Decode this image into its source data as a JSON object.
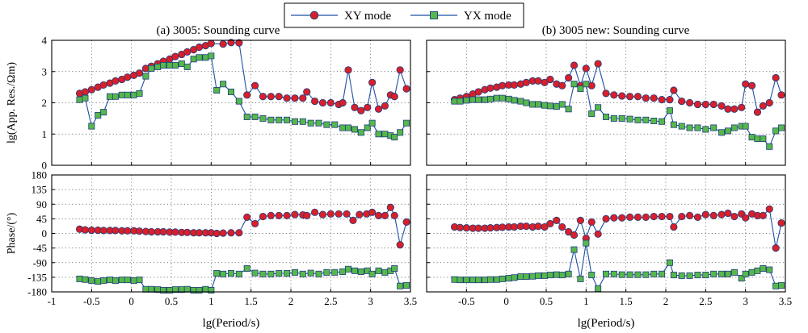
{
  "legend": {
    "placement": "top-center",
    "entries": [
      {
        "label": "XY mode",
        "marker": "circle",
        "color": "#d81f2a"
      },
      {
        "label": "YX mode",
        "marker": "square",
        "color": "#56b84b"
      }
    ]
  },
  "colors": {
    "line": "#1f4fa3",
    "xy_fill": "#d81f2a",
    "yx_fill": "#56b84b",
    "marker_edge": "#1f3c7c"
  },
  "chart_data": [
    {
      "type": "line",
      "title": "(a) 3005: Sounding curve",
      "panel": "top-left",
      "xlabel": "",
      "ylabel": "lg(App. Res./Ωm)",
      "xlim": [
        -1,
        3.5
      ],
      "ylim": [
        0,
        4
      ],
      "xticks": [],
      "yticks": [
        "0",
        "1",
        "2",
        "3",
        "4"
      ],
      "grid": true,
      "series": [
        {
          "name": "XY mode",
          "x": [
            -0.65,
            -0.58,
            -0.5,
            -0.42,
            -0.35,
            -0.27,
            -0.2,
            -0.12,
            -0.05,
            0.03,
            0.1,
            0.18,
            0.25,
            0.33,
            0.4,
            0.48,
            0.55,
            0.63,
            0.7,
            0.78,
            0.85,
            0.93,
            1.0,
            1.15,
            1.25,
            1.35,
            1.45,
            1.55,
            1.65,
            1.75,
            1.85,
            1.95,
            2.05,
            2.15,
            2.2,
            2.3,
            2.4,
            2.5,
            2.6,
            2.65,
            2.72,
            2.8,
            2.88,
            2.96,
            3.02,
            3.1,
            3.18,
            3.25,
            3.3,
            3.37,
            3.45
          ],
          "values": [
            2.3,
            2.35,
            2.42,
            2.5,
            2.57,
            2.63,
            2.7,
            2.75,
            2.82,
            2.88,
            2.95,
            3.1,
            3.17,
            3.25,
            3.33,
            3.4,
            3.48,
            3.55,
            3.63,
            3.7,
            3.78,
            3.83,
            3.9,
            3.88,
            3.93,
            3.92,
            2.25,
            2.55,
            2.2,
            2.2,
            2.2,
            2.15,
            2.15,
            2.15,
            2.35,
            2.05,
            2.0,
            2.0,
            1.95,
            2.0,
            3.05,
            1.85,
            1.75,
            1.85,
            2.65,
            1.8,
            1.9,
            2.25,
            2.2,
            3.05,
            2.45
          ]
        },
        {
          "name": "YX mode",
          "x": [
            -0.65,
            -0.58,
            -0.5,
            -0.42,
            -0.35,
            -0.27,
            -0.2,
            -0.12,
            -0.05,
            0.03,
            0.1,
            0.18,
            0.25,
            0.33,
            0.4,
            0.48,
            0.55,
            0.63,
            0.7,
            0.78,
            0.85,
            0.93,
            1.0,
            1.07,
            1.15,
            1.25,
            1.35,
            1.45,
            1.55,
            1.65,
            1.75,
            1.85,
            1.95,
            2.05,
            2.15,
            2.25,
            2.35,
            2.45,
            2.55,
            2.65,
            2.72,
            2.8,
            2.88,
            2.96,
            3.02,
            3.1,
            3.18,
            3.25,
            3.3,
            3.37,
            3.45
          ],
          "values": [
            2.1,
            2.15,
            1.25,
            1.6,
            1.7,
            2.2,
            2.2,
            2.25,
            2.25,
            2.25,
            2.3,
            2.85,
            3.1,
            3.15,
            3.2,
            3.2,
            3.2,
            3.25,
            3.15,
            3.4,
            3.45,
            3.45,
            3.5,
            2.4,
            2.6,
            2.35,
            2.05,
            1.55,
            1.55,
            1.5,
            1.45,
            1.45,
            1.45,
            1.4,
            1.4,
            1.35,
            1.35,
            1.3,
            1.3,
            1.2,
            1.2,
            1.15,
            1.05,
            1.2,
            1.35,
            1.0,
            1.0,
            0.95,
            0.9,
            1.05,
            1.35
          ]
        }
      ]
    },
    {
      "type": "line",
      "title": "(b) 3005 new: Sounding curve",
      "panel": "top-right",
      "xlabel": "",
      "ylabel": "",
      "xlim": [
        -1,
        3.5
      ],
      "ylim": [
        0,
        4
      ],
      "xticks": [],
      "yticks": [],
      "grid": true,
      "series": [
        {
          "name": "XY mode",
          "x": [
            -0.65,
            -0.58,
            -0.5,
            -0.42,
            -0.35,
            -0.27,
            -0.2,
            -0.12,
            -0.05,
            0.03,
            0.1,
            0.18,
            0.25,
            0.33,
            0.4,
            0.48,
            0.55,
            0.63,
            0.7,
            0.78,
            0.85,
            0.93,
            1.0,
            1.07,
            1.15,
            1.25,
            1.35,
            1.45,
            1.55,
            1.65,
            1.75,
            1.85,
            1.95,
            2.05,
            2.1,
            2.2,
            2.3,
            2.4,
            2.5,
            2.6,
            2.7,
            2.78,
            2.86,
            2.95,
            3.0,
            3.08,
            3.15,
            3.22,
            3.3,
            3.38,
            3.45
          ],
          "values": [
            2.1,
            2.15,
            2.2,
            2.28,
            2.35,
            2.42,
            2.47,
            2.5,
            2.55,
            2.57,
            2.57,
            2.6,
            2.65,
            2.7,
            2.7,
            2.65,
            2.75,
            2.6,
            2.55,
            2.8,
            3.2,
            2.55,
            3.1,
            2.55,
            3.25,
            2.3,
            2.25,
            2.22,
            2.2,
            2.2,
            2.15,
            2.15,
            2.1,
            2.1,
            2.4,
            2.05,
            2.0,
            1.95,
            1.95,
            1.95,
            1.9,
            1.8,
            1.8,
            1.85,
            2.6,
            2.55,
            1.7,
            1.9,
            2.0,
            2.8,
            2.25
          ]
        },
        {
          "name": "YX mode",
          "x": [
            -0.65,
            -0.58,
            -0.5,
            -0.42,
            -0.35,
            -0.27,
            -0.2,
            -0.12,
            -0.05,
            0.03,
            0.1,
            0.18,
            0.25,
            0.33,
            0.4,
            0.48,
            0.55,
            0.63,
            0.7,
            0.78,
            0.85,
            0.93,
            1.0,
            1.07,
            1.15,
            1.25,
            1.35,
            1.45,
            1.55,
            1.65,
            1.75,
            1.85,
            1.95,
            2.05,
            2.1,
            2.2,
            2.3,
            2.4,
            2.5,
            2.6,
            2.7,
            2.78,
            2.86,
            2.95,
            3.0,
            3.08,
            3.15,
            3.22,
            3.3,
            3.38,
            3.45
          ],
          "values": [
            2.05,
            2.05,
            2.08,
            2.1,
            2.1,
            2.1,
            2.12,
            2.15,
            2.15,
            2.12,
            2.08,
            2.05,
            2.0,
            1.95,
            1.95,
            1.92,
            1.9,
            1.88,
            1.95,
            1.8,
            2.6,
            2.45,
            2.6,
            1.65,
            1.85,
            1.55,
            1.5,
            1.5,
            1.48,
            1.45,
            1.45,
            1.42,
            1.4,
            1.75,
            1.3,
            1.25,
            1.2,
            1.2,
            1.15,
            1.2,
            1.05,
            1.1,
            1.2,
            1.25,
            1.25,
            0.9,
            0.85,
            0.85,
            0.6,
            1.1,
            1.2
          ]
        }
      ]
    },
    {
      "type": "line",
      "title": "",
      "panel": "bottom-left",
      "xlabel": "lg(Period/s)",
      "ylabel": "Phase/(°)",
      "xlim": [
        -1,
        3.5
      ],
      "ylim": [
        -180,
        180
      ],
      "xticks": [
        "-1",
        "-0.5",
        "0",
        "0.5",
        "1",
        "1.5",
        "2",
        "2.5",
        "3",
        "3.5"
      ],
      "yticks": [
        "-180",
        "-135",
        "-90",
        "-45",
        "0",
        "45",
        "90",
        "135",
        "180"
      ],
      "grid": true,
      "series": [
        {
          "name": "XY mode",
          "x": [
            -0.65,
            -0.58,
            -0.5,
            -0.42,
            -0.35,
            -0.27,
            -0.2,
            -0.12,
            -0.05,
            0.03,
            0.1,
            0.18,
            0.25,
            0.33,
            0.4,
            0.48,
            0.55,
            0.63,
            0.7,
            0.78,
            0.85,
            0.93,
            1.0,
            1.07,
            1.15,
            1.25,
            1.35,
            1.45,
            1.55,
            1.65,
            1.75,
            1.85,
            1.95,
            2.05,
            2.15,
            2.2,
            2.3,
            2.4,
            2.5,
            2.6,
            2.7,
            2.78,
            2.86,
            2.95,
            3.02,
            3.1,
            3.18,
            3.25,
            3.3,
            3.37,
            3.45
          ],
          "values": [
            13,
            11,
            10,
            10,
            9,
            9,
            9,
            8,
            8,
            8,
            7,
            6,
            5,
            5,
            5,
            4,
            4,
            3,
            3,
            2,
            2,
            2,
            2,
            0,
            1,
            2,
            2,
            50,
            30,
            52,
            55,
            55,
            55,
            58,
            57,
            55,
            65,
            58,
            60,
            60,
            60,
            40,
            58,
            60,
            65,
            55,
            55,
            80,
            55,
            -35,
            35
          ]
        },
        {
          "name": "YX mode",
          "x": [
            -0.65,
            -0.58,
            -0.5,
            -0.42,
            -0.35,
            -0.27,
            -0.2,
            -0.12,
            -0.05,
            0.03,
            0.1,
            0.18,
            0.25,
            0.33,
            0.4,
            0.48,
            0.55,
            0.63,
            0.7,
            0.78,
            0.85,
            0.93,
            1.0,
            1.07,
            1.15,
            1.25,
            1.35,
            1.45,
            1.55,
            1.65,
            1.75,
            1.85,
            1.95,
            2.05,
            2.15,
            2.25,
            2.35,
            2.45,
            2.55,
            2.65,
            2.72,
            2.8,
            2.88,
            2.96,
            3.02,
            3.1,
            3.18,
            3.25,
            3.3,
            3.37,
            3.45
          ],
          "values": [
            -140,
            -142,
            -145,
            -148,
            -145,
            -143,
            -145,
            -143,
            -143,
            -145,
            -143,
            -172,
            -172,
            -173,
            -175,
            -175,
            -173,
            -173,
            -172,
            -175,
            -175,
            -172,
            -175,
            -123,
            -125,
            -123,
            -125,
            -108,
            -122,
            -125,
            -125,
            -123,
            -123,
            -120,
            -125,
            -122,
            -125,
            -120,
            -120,
            -118,
            -110,
            -115,
            -118,
            -115,
            -125,
            -115,
            -120,
            -115,
            -108,
            -162,
            -160
          ]
        }
      ]
    },
    {
      "type": "line",
      "title": "",
      "panel": "bottom-right",
      "xlabel": "lg(Period/s)",
      "ylabel": "",
      "xlim": [
        -1,
        3.5
      ],
      "ylim": [
        -180,
        180
      ],
      "xticks": [
        "-0.5",
        "0",
        "0.5",
        "1",
        "1.5",
        "2",
        "2.5",
        "3",
        "3.5"
      ],
      "yticks": [],
      "grid": true,
      "series": [
        {
          "name": "XY mode",
          "x": [
            -0.65,
            -0.58,
            -0.5,
            -0.42,
            -0.35,
            -0.27,
            -0.2,
            -0.12,
            -0.05,
            0.03,
            0.1,
            0.18,
            0.25,
            0.33,
            0.4,
            0.48,
            0.55,
            0.63,
            0.7,
            0.78,
            0.85,
            0.93,
            1.0,
            1.07,
            1.15,
            1.25,
            1.35,
            1.45,
            1.55,
            1.65,
            1.75,
            1.85,
            1.95,
            2.05,
            2.1,
            2.2,
            2.3,
            2.4,
            2.5,
            2.6,
            2.7,
            2.78,
            2.86,
            2.95,
            3.0,
            3.08,
            3.15,
            3.22,
            3.3,
            3.38,
            3.45
          ],
          "values": [
            20,
            18,
            17,
            16,
            16,
            16,
            17,
            18,
            19,
            20,
            20,
            22,
            22,
            20,
            22,
            20,
            30,
            40,
            20,
            5,
            -5,
            40,
            -15,
            35,
            -2,
            45,
            48,
            48,
            50,
            50,
            50,
            52,
            52,
            52,
            20,
            52,
            55,
            50,
            58,
            55,
            58,
            62,
            52,
            60,
            48,
            60,
            55,
            55,
            75,
            -45,
            32
          ]
        },
        {
          "name": "YX mode",
          "x": [
            -0.65,
            -0.58,
            -0.5,
            -0.42,
            -0.35,
            -0.27,
            -0.2,
            -0.12,
            -0.05,
            0.03,
            0.1,
            0.18,
            0.25,
            0.33,
            0.4,
            0.48,
            0.55,
            0.63,
            0.7,
            0.78,
            0.85,
            0.93,
            1.0,
            1.07,
            1.15,
            1.25,
            1.35,
            1.45,
            1.55,
            1.65,
            1.75,
            1.85,
            1.95,
            2.05,
            2.1,
            2.2,
            2.3,
            2.4,
            2.5,
            2.6,
            2.7,
            2.78,
            2.86,
            2.95,
            3.0,
            3.08,
            3.15,
            3.22,
            3.3,
            3.38,
            3.45
          ],
          "values": [
            -142,
            -143,
            -143,
            -143,
            -143,
            -143,
            -142,
            -142,
            -140,
            -138,
            -136,
            -133,
            -133,
            -132,
            -130,
            -130,
            -128,
            -127,
            -128,
            -125,
            -50,
            -140,
            -30,
            -128,
            -170,
            -125,
            -125,
            -127,
            -127,
            -127,
            -127,
            -125,
            -125,
            -90,
            -128,
            -130,
            -130,
            -128,
            -128,
            -125,
            -125,
            -125,
            -120,
            -138,
            -125,
            -120,
            -115,
            -108,
            -112,
            -162,
            -160
          ]
        }
      ]
    }
  ]
}
